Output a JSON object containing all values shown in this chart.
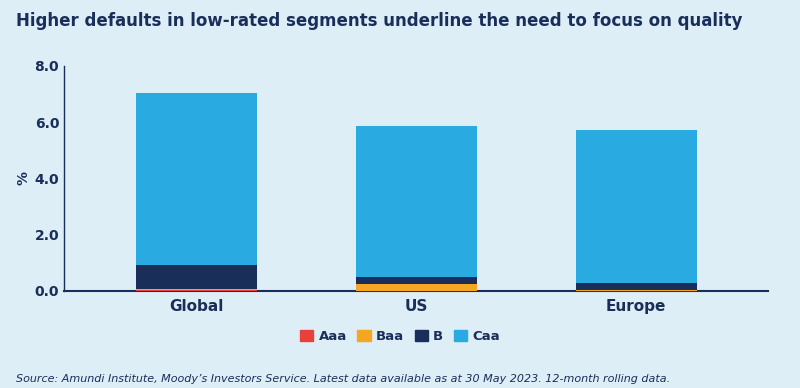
{
  "categories": [
    "Global",
    "US",
    "Europe"
  ],
  "segments": [
    "Aaa",
    "Baa",
    "B",
    "Caa"
  ],
  "colors": [
    "#e8403a",
    "#f5a623",
    "#1a2e5a",
    "#29abe2"
  ],
  "values": {
    "Aaa": [
      0.02,
      0.0,
      0.0
    ],
    "Baa": [
      0.05,
      0.25,
      0.02
    ],
    "B": [
      0.85,
      0.25,
      0.27
    ],
    "Caa": [
      6.13,
      5.35,
      5.43
    ]
  },
  "title": "Higher defaults in low-rated segments underline the need to focus on quality",
  "ylabel": "%",
  "ylim": [
    0,
    8.0
  ],
  "yticks": [
    0.0,
    2.0,
    4.0,
    6.0,
    8.0
  ],
  "background_color": "#ddeef6",
  "bar_width": 0.55,
  "source_text": "Source: Amundi Institute, Moody’s Investors Service. Latest data available as at 30 May 2023. 12-month rolling data.",
  "title_fontsize": 12,
  "axis_label_fontsize": 10,
  "legend_fontsize": 9.5,
  "source_fontsize": 8
}
